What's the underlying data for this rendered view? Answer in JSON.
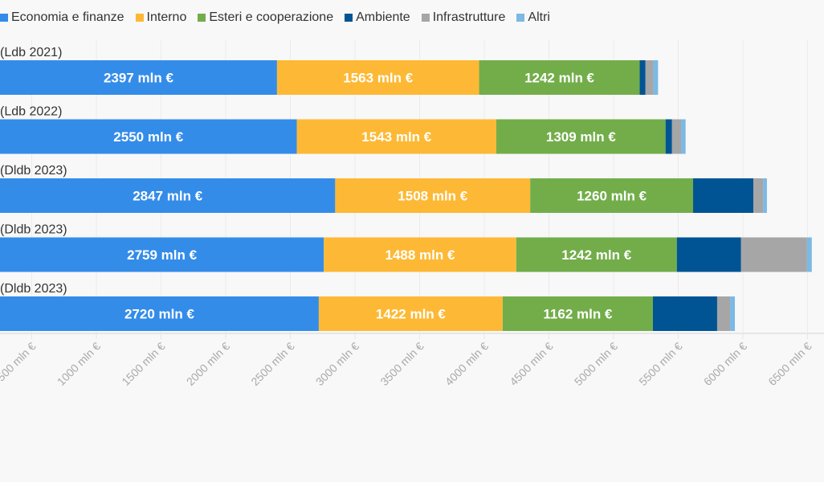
{
  "chart_data": {
    "type": "bar",
    "orientation": "horizontal",
    "stacked": true,
    "categories": [
      "(Ldb 2021)",
      "(Ldb 2022)",
      "(Dldb 2023)",
      "(Dldb 2023)",
      "(Dldb 2023)"
    ],
    "series": [
      {
        "name": "Economia e finanze",
        "color": "#348ce9",
        "values": [
          2397,
          2550,
          2847,
          2759,
          2720
        ],
        "labels": [
          "2397 mln €",
          "2550 mln €",
          "2847 mln €",
          "2759 mln €",
          "2720 mln €"
        ]
      },
      {
        "name": "Interno",
        "color": "#fdb935",
        "values": [
          1563,
          1543,
          1508,
          1488,
          1422
        ],
        "labels": [
          "1563 mln €",
          "1543 mln €",
          "1508 mln €",
          "1488 mln €",
          "1422 mln €"
        ]
      },
      {
        "name": "Esteri e cooperazione",
        "color": "#72ad4a",
        "values": [
          1242,
          1309,
          1260,
          1242,
          1162
        ],
        "labels": [
          "1242 mln €",
          "1309 mln €",
          "1260 mln €",
          "1242 mln €",
          "1162 mln €"
        ]
      },
      {
        "name": "Ambiente",
        "color": "#005493",
        "values": [
          45,
          50,
          466,
          497,
          497
        ]
      },
      {
        "name": "Infrastrutture",
        "color": "#a6a6a6",
        "values": [
          60,
          70,
          75,
          510,
          100
        ]
      },
      {
        "name": "Altri",
        "color": "#7cb9e4",
        "values": [
          37,
          35,
          30,
          37,
          37
        ]
      }
    ],
    "x_ticks": [
      500,
      1000,
      1500,
      2000,
      2500,
      3000,
      3500,
      4000,
      4500,
      5000,
      5500,
      6000,
      6500
    ],
    "x_tick_labels": [
      "500 mln €",
      "1000 mln €",
      "1500 mln €",
      "2000 mln €",
      "2500 mln €",
      "3000 mln €",
      "3500 mln €",
      "4000 mln €",
      "4500 mln €",
      "5000 mln €",
      "5500 mln €",
      "6000 mln €",
      "6500 mln €"
    ],
    "xlim": [
      255,
      6630
    ],
    "grid": true,
    "legend_position": "top-left"
  }
}
